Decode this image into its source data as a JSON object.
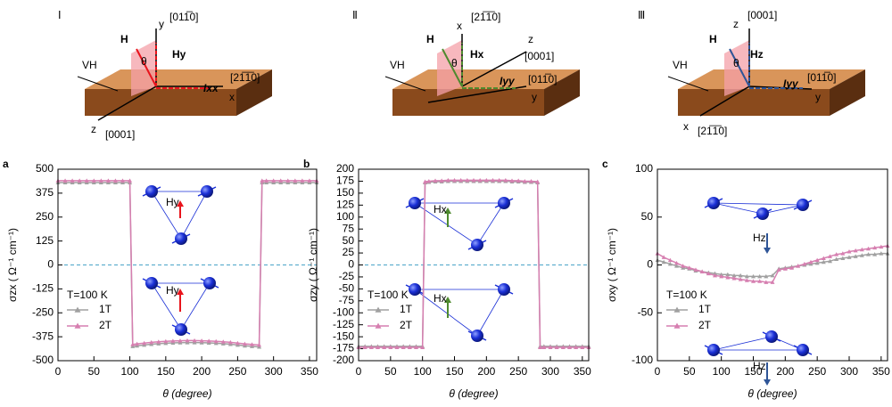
{
  "diagrams": [
    {
      "numeral": "Ⅰ",
      "field": "H",
      "component": "Hy",
      "angle": "θ",
      "current": "Ixx",
      "hall": "VH",
      "color": "#e8141c",
      "axes": [
        "y",
        "[011̅0]",
        "x",
        "[21̅1̅0]",
        "z",
        "[0001]"
      ]
    },
    {
      "numeral": "Ⅱ",
      "field": "H",
      "component": "Hx",
      "angle": "θ",
      "current": "Iyy",
      "hall": "VH",
      "color": "#4e8a2e",
      "axes": [
        "x",
        "[21̅1̅0]",
        "z",
        "[0001]",
        "y",
        "[011̅0]"
      ]
    },
    {
      "numeral": "Ⅲ",
      "field": "H",
      "component": "Hz",
      "angle": "θ",
      "current": "Iyy",
      "hall": "VH",
      "color": "#2f5597",
      "axes": [
        "z",
        "[0001]",
        "y",
        "[011̅0]",
        "x",
        "[21̅1̅0]"
      ]
    }
  ],
  "chart_data": [
    {
      "type": "line",
      "panel": "a",
      "xlabel": "θ (degree)",
      "ylabel": "σzx ( Ω⁻¹ cm⁻¹)",
      "note": "T=100 K",
      "annotations": [
        "Hy",
        "Hy"
      ],
      "annotation_color": "#e8141c",
      "xlim": [
        0,
        360
      ],
      "xticks": [
        0,
        50,
        100,
        150,
        200,
        250,
        300,
        350
      ],
      "ylim": [
        -500,
        500
      ],
      "yticks": [
        -500,
        -375,
        -250,
        -125,
        0,
        125,
        250,
        375,
        500
      ],
      "hline": 0,
      "x": [
        0,
        10,
        20,
        30,
        40,
        50,
        60,
        70,
        80,
        90,
        100,
        104,
        110,
        120,
        130,
        140,
        150,
        160,
        170,
        180,
        190,
        200,
        210,
        220,
        230,
        240,
        250,
        260,
        270,
        280,
        284,
        290,
        300,
        310,
        320,
        330,
        340,
        350,
        360
      ],
      "series": [
        {
          "name": "1T",
          "color": "#a0a0a0",
          "values": [
            430,
            430,
            430,
            430,
            430,
            430,
            430,
            430,
            430,
            430,
            430,
            -425,
            -422,
            -418,
            -414,
            -411,
            -409,
            -407,
            -406,
            -405,
            -405,
            -406,
            -407,
            -409,
            -411,
            -414,
            -418,
            -422,
            -425,
            -428,
            430,
            430,
            430,
            430,
            430,
            430,
            430,
            430,
            430
          ]
        },
        {
          "name": "2T",
          "color": "#d67fb0",
          "values": [
            440,
            440,
            440,
            440,
            440,
            440,
            440,
            440,
            440,
            440,
            440,
            -415,
            -412,
            -408,
            -404,
            -401,
            -399,
            -397,
            -396,
            -395,
            -395,
            -396,
            -397,
            -399,
            -401,
            -404,
            -408,
            -412,
            -415,
            -418,
            440,
            440,
            440,
            440,
            440,
            440,
            440,
            440,
            440
          ]
        }
      ]
    },
    {
      "type": "line",
      "panel": "b",
      "xlabel": "θ (degree)",
      "ylabel": "σzy ( Ω⁻¹ cm⁻¹)",
      "note": "T=100 K",
      "annotations": [
        "Hx",
        "Hx"
      ],
      "annotation_color": "#4e8a2e",
      "xlim": [
        0,
        360
      ],
      "xticks": [
        0,
        50,
        100,
        150,
        200,
        250,
        300,
        350
      ],
      "ylim": [
        -200,
        200
      ],
      "yticks": [
        -200,
        -175,
        -150,
        -125,
        -100,
        -75,
        -50,
        -25,
        0,
        25,
        50,
        75,
        100,
        125,
        150,
        175,
        200
      ],
      "hline": 0,
      "x": [
        0,
        10,
        20,
        30,
        40,
        50,
        60,
        70,
        80,
        90,
        100,
        104,
        110,
        120,
        130,
        140,
        150,
        160,
        170,
        180,
        190,
        200,
        210,
        220,
        230,
        240,
        250,
        260,
        270,
        280,
        284,
        290,
        300,
        310,
        320,
        330,
        340,
        350,
        360
      ],
      "series": [
        {
          "name": "1T",
          "color": "#a0a0a0",
          "values": [
            -170,
            -170,
            -170,
            -170,
            -170,
            -170,
            -170,
            -170,
            -170,
            -170,
            -170,
            172,
            173,
            174,
            174,
            175,
            175,
            175,
            175,
            175,
            175,
            175,
            175,
            175,
            175,
            174,
            174,
            173,
            173,
            172,
            -170,
            -170,
            -170,
            -170,
            -170,
            -170,
            -170,
            -170,
            -170
          ]
        },
        {
          "name": "2T",
          "color": "#d67fb0",
          "values": [
            -172,
            -172,
            -172,
            -172,
            -172,
            -172,
            -172,
            -172,
            -172,
            -172,
            -172,
            174,
            175,
            176,
            176,
            177,
            177,
            177,
            177,
            177,
            177,
            177,
            177,
            177,
            177,
            176,
            176,
            175,
            175,
            174,
            -172,
            -172,
            -172,
            -172,
            -172,
            -172,
            -172,
            -172,
            -172
          ]
        }
      ]
    },
    {
      "type": "line",
      "panel": "c",
      "xlabel": "θ (degree)",
      "ylabel": "σxy ( Ω⁻¹ cm⁻¹)",
      "note": "T=100 K",
      "annotations": [
        "Hz",
        "Hz"
      ],
      "annotation_color": "#2f5597",
      "xlim": [
        0,
        360
      ],
      "xticks": [
        0,
        50,
        100,
        150,
        200,
        250,
        300,
        350
      ],
      "ylim": [
        -100,
        100
      ],
      "yticks": [
        -100,
        -50,
        0,
        50,
        100
      ],
      "x": [
        0,
        10,
        20,
        30,
        40,
        50,
        60,
        70,
        80,
        90,
        100,
        110,
        120,
        130,
        140,
        150,
        160,
        170,
        180,
        190,
        200,
        210,
        220,
        230,
        240,
        250,
        260,
        270,
        280,
        290,
        300,
        310,
        320,
        330,
        340,
        350,
        360
      ],
      "series": [
        {
          "name": "1T",
          "color": "#a0a0a0",
          "values": [
            5,
            3,
            1,
            -1,
            -3,
            -4,
            -6,
            -7,
            -8,
            -9,
            -10,
            -10,
            -11,
            -11,
            -12,
            -12,
            -12,
            -12,
            -11,
            -4,
            -3,
            -2,
            -1,
            0,
            1,
            2,
            3,
            4,
            6,
            7,
            8,
            9,
            10,
            11,
            11,
            12,
            12
          ]
        },
        {
          "name": "2T",
          "color": "#d67fb0",
          "values": [
            12,
            8,
            5,
            2,
            -1,
            -3,
            -5,
            -7,
            -9,
            -11,
            -12,
            -13,
            -14,
            -15,
            -16,
            -17,
            -17,
            -18,
            -18,
            -5,
            -4,
            -3,
            -1,
            1,
            3,
            5,
            7,
            9,
            11,
            12,
            14,
            15,
            16,
            17,
            18,
            19,
            20
          ]
        }
      ]
    }
  ]
}
